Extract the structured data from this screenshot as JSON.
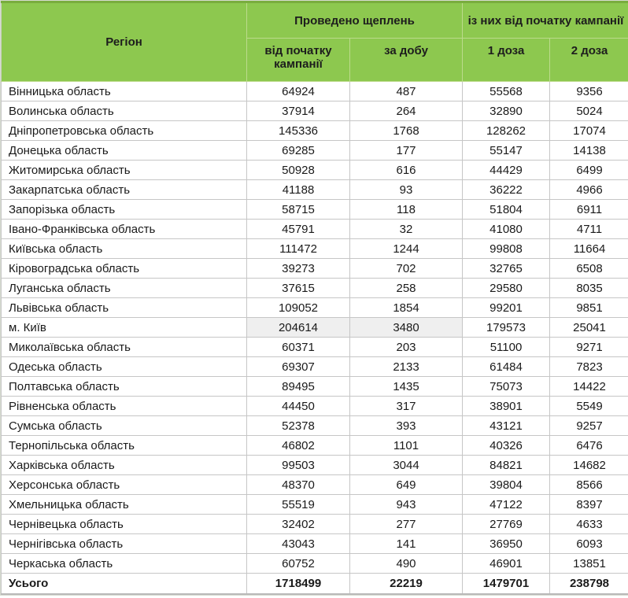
{
  "table": {
    "header": {
      "region": "Регіон",
      "group_vaccinations": "Проведено щеплень",
      "group_since_start": "із них від початку кампанії",
      "sub_since_start": "від початку кампанії",
      "sub_per_day": "за добу",
      "sub_dose1": "1 доза",
      "sub_dose2": "2 доза"
    },
    "rows": [
      {
        "region": "Вінницька область",
        "values": [
          64924,
          487,
          55568,
          9356
        ]
      },
      {
        "region": "Волинська область",
        "values": [
          37914,
          264,
          32890,
          5024
        ]
      },
      {
        "region": "Дніпропетровська область",
        "values": [
          145336,
          1768,
          128262,
          17074
        ]
      },
      {
        "region": "Донецька область",
        "values": [
          69285,
          177,
          55147,
          14138
        ]
      },
      {
        "region": "Житомирська область",
        "values": [
          50928,
          616,
          44429,
          6499
        ]
      },
      {
        "region": "Закарпатська область",
        "values": [
          41188,
          93,
          36222,
          4966
        ]
      },
      {
        "region": "Запорізька область",
        "values": [
          58715,
          118,
          51804,
          6911
        ]
      },
      {
        "region": "Івано-Франківська область",
        "values": [
          45791,
          32,
          41080,
          4711
        ]
      },
      {
        "region": "Київська область",
        "values": [
          111472,
          1244,
          99808,
          11664
        ]
      },
      {
        "region": "Кіровоградська область",
        "values": [
          39273,
          702,
          32765,
          6508
        ]
      },
      {
        "region": "Луганська область",
        "values": [
          37615,
          258,
          29580,
          8035
        ]
      },
      {
        "region": "Львівська область",
        "values": [
          109052,
          1854,
          99201,
          9851
        ]
      },
      {
        "region": "м. Київ",
        "values": [
          204614,
          3480,
          179573,
          25041
        ],
        "highlight_first_two": true
      },
      {
        "region": "Миколаївська область",
        "values": [
          60371,
          203,
          51100,
          9271
        ]
      },
      {
        "region": "Одеська область",
        "values": [
          69307,
          2133,
          61484,
          7823
        ]
      },
      {
        "region": "Полтавська область",
        "values": [
          89495,
          1435,
          75073,
          14422
        ]
      },
      {
        "region": "Рівненська область",
        "values": [
          44450,
          317,
          38901,
          5549
        ]
      },
      {
        "region": "Сумська область",
        "values": [
          52378,
          393,
          43121,
          9257
        ]
      },
      {
        "region": "Тернопільська область",
        "values": [
          46802,
          1101,
          40326,
          6476
        ]
      },
      {
        "region": "Харківська область",
        "values": [
          99503,
          3044,
          84821,
          14682
        ]
      },
      {
        "region": "Херсонська область",
        "values": [
          48370,
          649,
          39804,
          8566
        ]
      },
      {
        "region": "Хмельницька область",
        "values": [
          55519,
          943,
          47122,
          8397
        ]
      },
      {
        "region": "Чернівецька область",
        "values": [
          32402,
          277,
          27769,
          4633
        ]
      },
      {
        "region": "Чернігівська область",
        "values": [
          43043,
          141,
          36950,
          6093
        ]
      },
      {
        "region": "Черкаська область",
        "values": [
          60752,
          490,
          46901,
          13851
        ]
      }
    ],
    "total": {
      "label": "Усього",
      "values": [
        1718499,
        22219,
        1479701,
        238798
      ]
    }
  },
  "colors": {
    "header_green": "#8dc84f",
    "header_green_dark_edge": "#79ad3e",
    "border_gray": "#c6c6c6",
    "highlight_gray": "#efefef",
    "text": "#1a1a1a"
  }
}
